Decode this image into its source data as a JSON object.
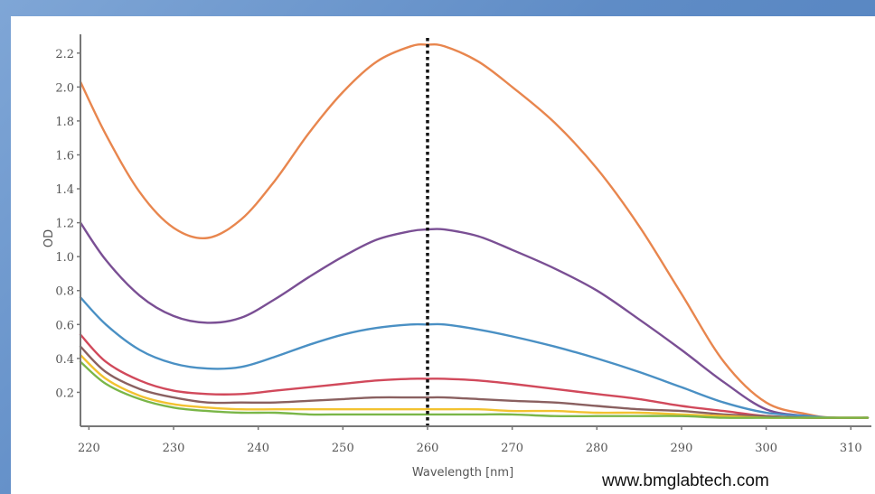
{
  "watermark": "www.bmglabtech.com",
  "chart_data": {
    "type": "line",
    "title": "",
    "xlabel": "Wavelength [nm]",
    "ylabel": "OD",
    "xlim": [
      219,
      312
    ],
    "ylim": [
      0,
      2.3
    ],
    "x_ticks": [
      220,
      230,
      240,
      250,
      260,
      270,
      280,
      290,
      300,
      310
    ],
    "y_ticks": [
      0.2,
      0.4,
      0.6,
      0.8,
      1.0,
      1.2,
      1.4,
      1.6,
      1.8,
      2.0,
      2.2
    ],
    "y_tick_labels": [
      "0.2",
      "0.4",
      "0.6",
      "0.8",
      "1.0",
      "1.2",
      "1.4",
      "1.6",
      "1.8",
      "2.0",
      "2.2"
    ],
    "grid": false,
    "legend": "none",
    "marker_line": {
      "x": 260,
      "style": "dotted",
      "color": "#111111"
    },
    "series": [
      {
        "color": "#e8864e",
        "x": [
          219,
          222,
          226,
          230,
          234,
          238,
          242,
          246,
          250,
          254,
          258,
          260,
          262,
          266,
          270,
          275,
          280,
          285,
          290,
          295,
          300,
          305,
          308,
          312
        ],
        "y": [
          2.03,
          1.72,
          1.38,
          1.17,
          1.11,
          1.22,
          1.45,
          1.73,
          1.97,
          2.15,
          2.24,
          2.25,
          2.24,
          2.15,
          2.0,
          1.79,
          1.52,
          1.18,
          0.78,
          0.38,
          0.14,
          0.07,
          0.05,
          0.05
        ]
      },
      {
        "color": "#7a4f94",
        "x": [
          219,
          222,
          226,
          230,
          234,
          238,
          242,
          246,
          250,
          254,
          258,
          260,
          262,
          266,
          270,
          275,
          280,
          285,
          290,
          295,
          300,
          305,
          308,
          312
        ],
        "y": [
          1.2,
          0.98,
          0.77,
          0.65,
          0.61,
          0.64,
          0.75,
          0.88,
          1.0,
          1.1,
          1.15,
          1.16,
          1.16,
          1.12,
          1.04,
          0.93,
          0.8,
          0.63,
          0.45,
          0.26,
          0.1,
          0.06,
          0.05,
          0.05
        ]
      },
      {
        "color": "#4a90c4",
        "x": [
          219,
          222,
          226,
          230,
          234,
          238,
          242,
          246,
          250,
          254,
          258,
          260,
          262,
          266,
          270,
          275,
          280,
          285,
          290,
          295,
          300,
          305,
          308,
          312
        ],
        "y": [
          0.76,
          0.6,
          0.45,
          0.37,
          0.34,
          0.35,
          0.41,
          0.48,
          0.54,
          0.58,
          0.6,
          0.6,
          0.6,
          0.57,
          0.53,
          0.47,
          0.4,
          0.32,
          0.23,
          0.14,
          0.08,
          0.06,
          0.05,
          0.05
        ]
      },
      {
        "color": "#d1495b",
        "x": [
          219,
          222,
          226,
          230,
          234,
          238,
          242,
          246,
          250,
          254,
          258,
          260,
          262,
          266,
          270,
          275,
          280,
          285,
          290,
          295,
          300,
          305,
          308,
          312
        ],
        "y": [
          0.54,
          0.38,
          0.27,
          0.21,
          0.19,
          0.19,
          0.21,
          0.23,
          0.25,
          0.27,
          0.28,
          0.28,
          0.28,
          0.27,
          0.25,
          0.22,
          0.19,
          0.16,
          0.12,
          0.09,
          0.06,
          0.05,
          0.05,
          0.05
        ]
      },
      {
        "color": "#8a6060",
        "x": [
          219,
          222,
          226,
          230,
          234,
          238,
          242,
          246,
          250,
          254,
          258,
          260,
          262,
          266,
          270,
          275,
          280,
          285,
          290,
          295,
          300,
          305,
          308,
          312
        ],
        "y": [
          0.47,
          0.32,
          0.22,
          0.17,
          0.14,
          0.14,
          0.14,
          0.15,
          0.16,
          0.17,
          0.17,
          0.17,
          0.17,
          0.16,
          0.15,
          0.14,
          0.12,
          0.1,
          0.09,
          0.07,
          0.06,
          0.05,
          0.05,
          0.05
        ]
      },
      {
        "color": "#f2c230",
        "x": [
          219,
          222,
          226,
          230,
          234,
          238,
          242,
          246,
          250,
          254,
          258,
          260,
          262,
          266,
          270,
          275,
          280,
          285,
          290,
          295,
          300,
          305,
          308,
          312
        ],
        "y": [
          0.42,
          0.28,
          0.18,
          0.13,
          0.11,
          0.1,
          0.1,
          0.1,
          0.1,
          0.1,
          0.1,
          0.1,
          0.1,
          0.1,
          0.09,
          0.09,
          0.08,
          0.08,
          0.07,
          0.06,
          0.05,
          0.05,
          0.05,
          0.05
        ]
      },
      {
        "color": "#7ab648",
        "x": [
          219,
          222,
          226,
          230,
          234,
          238,
          242,
          246,
          250,
          254,
          258,
          260,
          262,
          266,
          270,
          275,
          280,
          285,
          290,
          295,
          300,
          305,
          308,
          312
        ],
        "y": [
          0.38,
          0.25,
          0.16,
          0.11,
          0.09,
          0.08,
          0.08,
          0.07,
          0.07,
          0.07,
          0.07,
          0.07,
          0.07,
          0.07,
          0.07,
          0.06,
          0.06,
          0.06,
          0.06,
          0.05,
          0.05,
          0.05,
          0.05,
          0.05
        ]
      }
    ]
  }
}
